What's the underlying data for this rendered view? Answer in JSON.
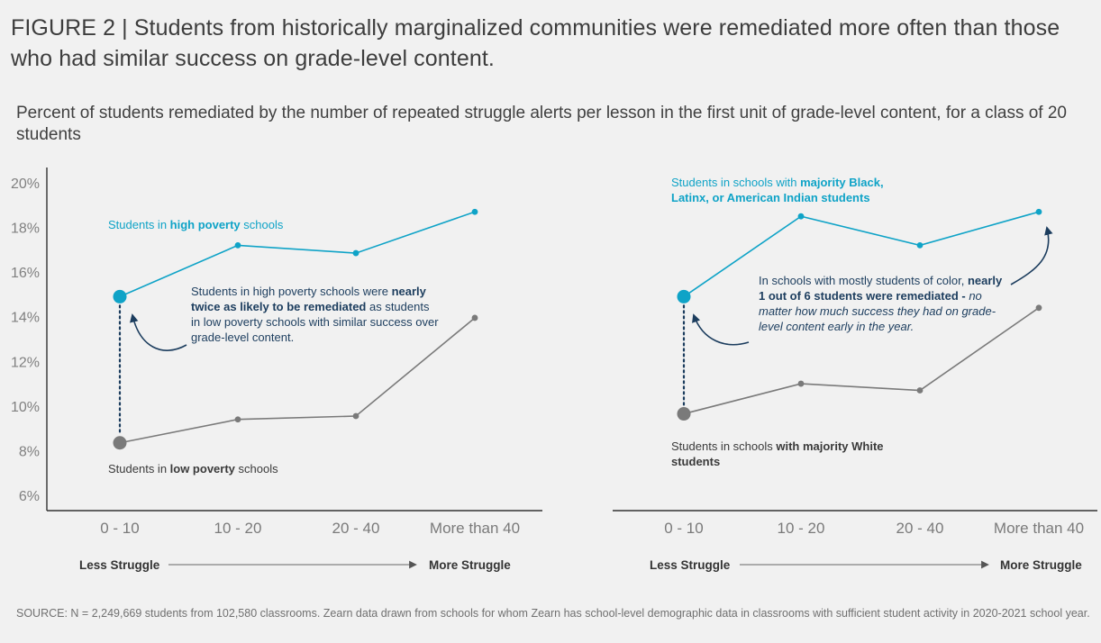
{
  "title": "FIGURE 2 | Students from historically marginalized communities were remediated more often than those who had similar success on grade-level content.",
  "subtitle": "Percent of students remediated by the number of repeated struggle alerts per lesson in the first unit of grade-level content, for a class of 20 students",
  "source": "SOURCE: N = 2,249,669 students from 102,580 classrooms. Zearn data drawn from schools for whom Zearn has school-level demographic data in classrooms with sufficient student activity in 2020-2021 school year.",
  "colors": {
    "accent": "#0fa3c7",
    "gray": "#7a7a7a",
    "navy": "#1c3d5e"
  },
  "chart_data": [
    {
      "type": "line",
      "categories": [
        "0 - 10",
        "10 - 20",
        "20 - 40",
        "More than 40"
      ],
      "y_ticks": [
        "6%",
        "8%",
        "10%",
        "12%",
        "14%",
        "16%",
        "18%",
        "20%"
      ],
      "ylim": [
        6,
        20.5
      ],
      "series": [
        {
          "name": "Students in high poverty schools",
          "color": "#0fa3c7",
          "values": [
            14.9,
            17.2,
            16.85,
            18.7
          ]
        },
        {
          "name": "Students in low poverty schools",
          "color": "#7a7a7a",
          "values": [
            8.35,
            9.4,
            9.55,
            13.95
          ]
        }
      ],
      "labels": {
        "top_parts": [
          {
            "text": "Students in ",
            "bold": false
          },
          {
            "text": "high poverty",
            "bold": true
          },
          {
            "text": " schools",
            "bold": false
          }
        ],
        "bottom_parts": [
          {
            "text": "Students in ",
            "bold": false
          },
          {
            "text": "low poverty",
            "bold": true
          },
          {
            "text": " schools",
            "bold": false
          }
        ]
      },
      "annotation": {
        "lines": [
          [
            {
              "text": "Students in high poverty schools were ",
              "bold": false
            },
            {
              "text": "nearly",
              "bold": true
            }
          ],
          [
            {
              "text": "twice as likely to be remediated",
              "bold": true
            },
            {
              "text": " as students",
              "bold": false
            }
          ],
          [
            {
              "text": "in low poverty schools with similar success over",
              "bold": false
            }
          ],
          [
            {
              "text": "grade-level content.",
              "bold": false
            }
          ]
        ]
      },
      "xaxis_note": {
        "left": "Less Struggle",
        "right": "More Struggle"
      }
    },
    {
      "type": "line",
      "categories": [
        "0 - 10",
        "10 - 20",
        "20 - 40",
        "More than 40"
      ],
      "y_ticks": [],
      "ylim": [
        6,
        20.5
      ],
      "series": [
        {
          "name": "Students in schools with majority Black, Latinx, or American Indian students",
          "color": "#0fa3c7",
          "values": [
            14.9,
            18.5,
            17.2,
            18.7
          ]
        },
        {
          "name": "Students in schools with majority White students",
          "color": "#7a7a7a",
          "values": [
            9.65,
            11.0,
            10.7,
            14.4
          ]
        }
      ],
      "labels": {
        "top_lines": [
          [
            {
              "text": "Students in schools with ",
              "bold": false
            },
            {
              "text": "majority Black,",
              "bold": true
            }
          ],
          [
            {
              "text": "Latinx, or American Indian students",
              "bold": true
            }
          ]
        ],
        "bottom_lines": [
          [
            {
              "text": "Students in schools ",
              "bold": false
            },
            {
              "text": "with majority White",
              "bold": true
            }
          ],
          [
            {
              "text": "students",
              "bold": true
            }
          ]
        ]
      },
      "annotation": {
        "lines": [
          [
            {
              "text": "In schools with mostly students of color, ",
              "bold": false
            },
            {
              "text": "nearly",
              "bold": true
            }
          ],
          [
            {
              "text": "1 out of 6 students were remediated - ",
              "bold": true
            },
            {
              "text": "no",
              "italic": true
            }
          ],
          [
            {
              "text": "matter how much success they had on grade-",
              "italic": true
            }
          ],
          [
            {
              "text": "level content early in the year.",
              "italic": true
            }
          ]
        ]
      },
      "xaxis_note": {
        "left": "Less Struggle",
        "right": "More Struggle"
      }
    }
  ]
}
